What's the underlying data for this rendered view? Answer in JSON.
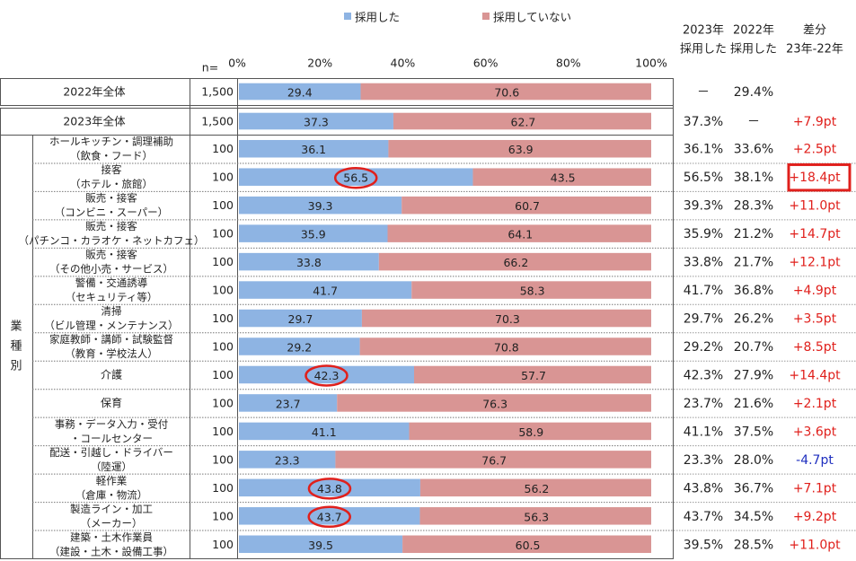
{
  "legend": [
    {
      "label": "採用した",
      "color": "#8EB4E3"
    },
    {
      "label": "採用していない",
      "color": "#D99594"
    }
  ],
  "n_label": "n=",
  "axis_ticks": [
    "0%",
    "20%",
    "40%",
    "60%",
    "80%",
    "100%"
  ],
  "group_label": "業種別",
  "right_headers": [
    {
      "line1": "2023年",
      "line2": "採用した"
    },
    {
      "line1": "2022年",
      "line2": "採用した"
    },
    {
      "line1": "差分",
      "line2": "23年-22年"
    }
  ],
  "colors": {
    "adopted": "#8EB4E3",
    "not_adopted": "#D99594",
    "positive_diff": "#E0201C",
    "negative_diff": "#1F2FBF",
    "highlight": "#E0201C"
  },
  "chart_data": {
    "type": "bar",
    "orientation": "horizontal",
    "stacked": true,
    "xlim": [
      0,
      100
    ],
    "series": [
      {
        "name": "採用した",
        "values": [
          29.4,
          37.3,
          36.1,
          56.5,
          39.3,
          35.9,
          33.8,
          41.7,
          29.7,
          29.2,
          42.3,
          23.7,
          41.1,
          23.3,
          43.8,
          43.7,
          39.5
        ]
      },
      {
        "name": "採用していない",
        "values": [
          70.6,
          62.7,
          63.9,
          43.5,
          60.7,
          64.1,
          66.2,
          58.3,
          70.3,
          70.8,
          57.7,
          76.3,
          58.9,
          76.7,
          56.2,
          56.3,
          60.5
        ]
      }
    ],
    "rows": [
      {
        "label1": "2022年全体",
        "label2": "",
        "n": "1,500",
        "adopted": 29.4,
        "not": 70.6,
        "v2023": "－",
        "v2022": "29.4%",
        "diff": "",
        "diff_sign": "none",
        "circled": false,
        "boxed": false,
        "kind": "total"
      },
      {
        "label1": "2023年全体",
        "label2": "",
        "n": "1,500",
        "adopted": 37.3,
        "not": 62.7,
        "v2023": "37.3%",
        "v2022": "－",
        "diff": "+7.9pt",
        "diff_sign": "pos",
        "circled": false,
        "boxed": false,
        "kind": "total"
      },
      {
        "label1": "ホールキッチン・調理補助",
        "label2": "（飲食・フード）",
        "n": "100",
        "adopted": 36.1,
        "not": 63.9,
        "v2023": "36.1%",
        "v2022": "33.6%",
        "diff": "+2.5pt",
        "diff_sign": "pos",
        "circled": false,
        "boxed": false,
        "kind": "ind"
      },
      {
        "label1": "接客",
        "label2": "（ホテル・旅館）",
        "n": "100",
        "adopted": 56.5,
        "not": 43.5,
        "v2023": "56.5%",
        "v2022": "38.1%",
        "diff": "+18.4pt",
        "diff_sign": "pos",
        "circled": true,
        "boxed": true,
        "kind": "ind"
      },
      {
        "label1": "販売・接客",
        "label2": "（コンビニ・スーパー）",
        "n": "100",
        "adopted": 39.3,
        "not": 60.7,
        "v2023": "39.3%",
        "v2022": "28.3%",
        "diff": "+11.0pt",
        "diff_sign": "pos",
        "circled": false,
        "boxed": false,
        "kind": "ind"
      },
      {
        "label1": "販売・接客",
        "label2": "（パチンコ・カラオケ・ネットカフェ）",
        "n": "100",
        "adopted": 35.9,
        "not": 64.1,
        "v2023": "35.9%",
        "v2022": "21.2%",
        "diff": "+14.7pt",
        "diff_sign": "pos",
        "circled": false,
        "boxed": false,
        "kind": "ind"
      },
      {
        "label1": "販売・接客",
        "label2": "（その他小売・サービス）",
        "n": "100",
        "adopted": 33.8,
        "not": 66.2,
        "v2023": "33.8%",
        "v2022": "21.7%",
        "diff": "+12.1pt",
        "diff_sign": "pos",
        "circled": false,
        "boxed": false,
        "kind": "ind"
      },
      {
        "label1": "警備・交通誘導",
        "label2": "（セキュリティ等）",
        "n": "100",
        "adopted": 41.7,
        "not": 58.3,
        "v2023": "41.7%",
        "v2022": "36.8%",
        "diff": "+4.9pt",
        "diff_sign": "pos",
        "circled": false,
        "boxed": false,
        "kind": "ind"
      },
      {
        "label1": "清掃",
        "label2": "（ビル管理・メンテナンス）",
        "n": "100",
        "adopted": 29.7,
        "not": 70.3,
        "v2023": "29.7%",
        "v2022": "26.2%",
        "diff": "+3.5pt",
        "diff_sign": "pos",
        "circled": false,
        "boxed": false,
        "kind": "ind"
      },
      {
        "label1": "家庭教師・講師・試験監督",
        "label2": "（教育・学校法人）",
        "n": "100",
        "adopted": 29.2,
        "not": 70.8,
        "v2023": "29.2%",
        "v2022": "20.7%",
        "diff": "+8.5pt",
        "diff_sign": "pos",
        "circled": false,
        "boxed": false,
        "kind": "ind"
      },
      {
        "label1": "介護",
        "label2": "",
        "n": "100",
        "adopted": 42.3,
        "not": 57.7,
        "v2023": "42.3%",
        "v2022": "27.9%",
        "diff": "+14.4pt",
        "diff_sign": "pos",
        "circled": true,
        "boxed": false,
        "kind": "ind"
      },
      {
        "label1": "保育",
        "label2": "",
        "n": "100",
        "adopted": 23.7,
        "not": 76.3,
        "v2023": "23.7%",
        "v2022": "21.6%",
        "diff": "+2.1pt",
        "diff_sign": "pos",
        "circled": false,
        "boxed": false,
        "kind": "ind"
      },
      {
        "label1": "事務・データ入力・受付",
        "label2": "・コールセンター",
        "n": "100",
        "adopted": 41.1,
        "not": 58.9,
        "v2023": "41.1%",
        "v2022": "37.5%",
        "diff": "+3.6pt",
        "diff_sign": "pos",
        "circled": false,
        "boxed": false,
        "kind": "ind"
      },
      {
        "label1": "配送・引越し・ドライバー",
        "label2": "（陸運）",
        "n": "100",
        "adopted": 23.3,
        "not": 76.7,
        "v2023": "23.3%",
        "v2022": "28.0%",
        "diff": "-4.7pt",
        "diff_sign": "neg",
        "circled": false,
        "boxed": false,
        "kind": "ind"
      },
      {
        "label1": "軽作業",
        "label2": "（倉庫・物流）",
        "n": "100",
        "adopted": 43.8,
        "not": 56.2,
        "v2023": "43.8%",
        "v2022": "36.7%",
        "diff": "+7.1pt",
        "diff_sign": "pos",
        "circled": true,
        "boxed": false,
        "kind": "ind"
      },
      {
        "label1": "製造ライン・加工",
        "label2": "（メーカー）",
        "n": "100",
        "adopted": 43.7,
        "not": 56.3,
        "v2023": "43.7%",
        "v2022": "34.5%",
        "diff": "+9.2pt",
        "diff_sign": "pos",
        "circled": true,
        "boxed": false,
        "kind": "ind"
      },
      {
        "label1": "建築・土木作業員",
        "label2": "（建設・土木・設備工事）",
        "n": "100",
        "adopted": 39.5,
        "not": 60.5,
        "v2023": "39.5%",
        "v2022": "28.5%",
        "diff": "+11.0pt",
        "diff_sign": "pos",
        "circled": false,
        "boxed": false,
        "kind": "ind"
      }
    ]
  }
}
